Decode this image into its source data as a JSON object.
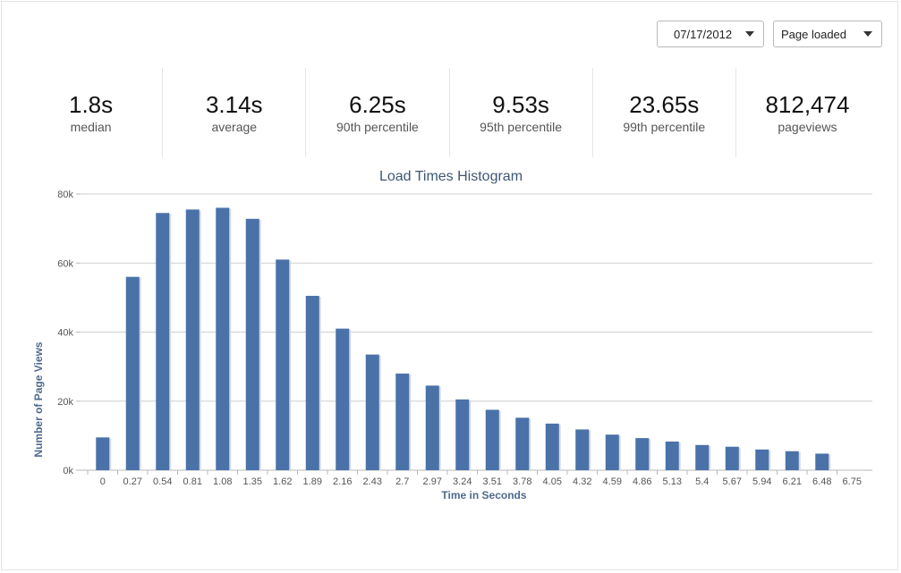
{
  "controls": {
    "date_value": "07/17/2012",
    "metric_value": "Page loaded"
  },
  "stats": [
    {
      "value": "1.8s",
      "label": "median"
    },
    {
      "value": "3.14s",
      "label": "average"
    },
    {
      "value": "6.25s",
      "label": "90th percentile"
    },
    {
      "value": "9.53s",
      "label": "95th percentile"
    },
    {
      "value": "23.65s",
      "label": "99th percentile"
    },
    {
      "value": "812,474",
      "label": "pageviews"
    }
  ],
  "chart_data": {
    "type": "bar",
    "title": "Load Times Histogram",
    "xlabel": "Time in Seconds",
    "ylabel": "Number of Page Views",
    "categories": [
      "0",
      "0.27",
      "0.54",
      "0.81",
      "1.08",
      "1.35",
      "1.62",
      "1.89",
      "2.16",
      "2.43",
      "2.7",
      "2.97",
      "3.24",
      "3.51",
      "3.78",
      "4.05",
      "4.32",
      "4.59",
      "4.86",
      "5.13",
      "5.4",
      "5.67",
      "5.94",
      "6.21",
      "6.48",
      "6.75"
    ],
    "values": [
      9500,
      56000,
      74500,
      75500,
      76000,
      72800,
      61000,
      50500,
      41000,
      33500,
      28000,
      24500,
      20500,
      17500,
      15200,
      13500,
      11800,
      10300,
      9300,
      8300,
      7300,
      6800,
      6000,
      5500,
      4800,
      0
    ],
    "ylim": [
      0,
      80000
    ],
    "yticks": [
      0,
      20000,
      40000,
      60000,
      80000
    ],
    "ytick_labels": [
      "0k",
      "20k",
      "40k",
      "60k",
      "80k"
    ],
    "grid": true,
    "bar_color": "#4a72a8"
  }
}
